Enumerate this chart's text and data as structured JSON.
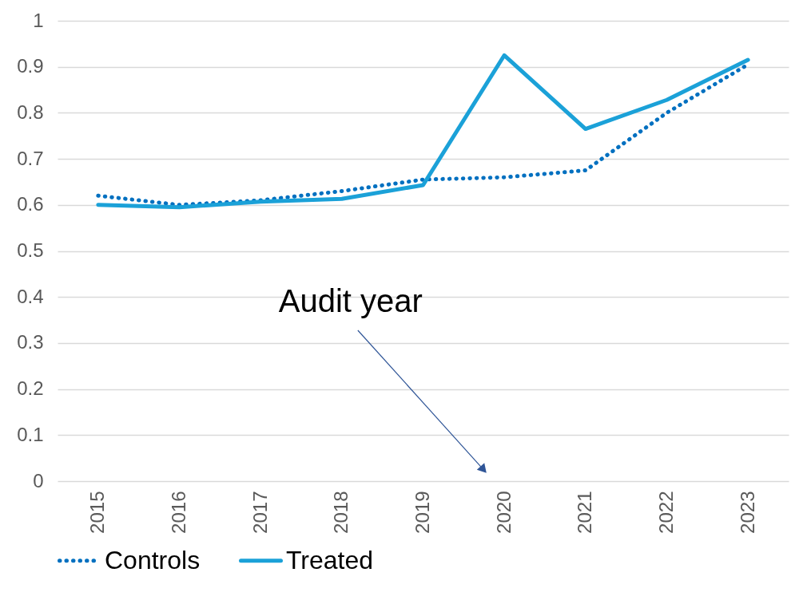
{
  "chart_data": {
    "type": "line",
    "categories": [
      "2015",
      "2016",
      "2017",
      "2018",
      "2019",
      "2020",
      "2021",
      "2022",
      "2023"
    ],
    "series": [
      {
        "name": "Controls",
        "color": "#0070c0",
        "line_style": "dotted",
        "values": [
          0.62,
          0.6,
          0.61,
          0.63,
          0.655,
          0.66,
          0.675,
          0.8,
          0.905
        ]
      },
      {
        "name": "Treated",
        "color": "#1ba1d8",
        "line_style": "solid",
        "values": [
          0.6,
          0.595,
          0.607,
          0.613,
          0.643,
          0.925,
          0.765,
          0.828,
          0.915
        ]
      }
    ],
    "ylim": [
      0,
      1
    ],
    "yticks": [
      0,
      0.1,
      0.2,
      0.3,
      0.4,
      0.5,
      0.6,
      0.7,
      0.8,
      0.9,
      1
    ],
    "annotations": [
      "Audit year"
    ],
    "grid": "y",
    "legend": "bottom",
    "marker": "none"
  }
}
